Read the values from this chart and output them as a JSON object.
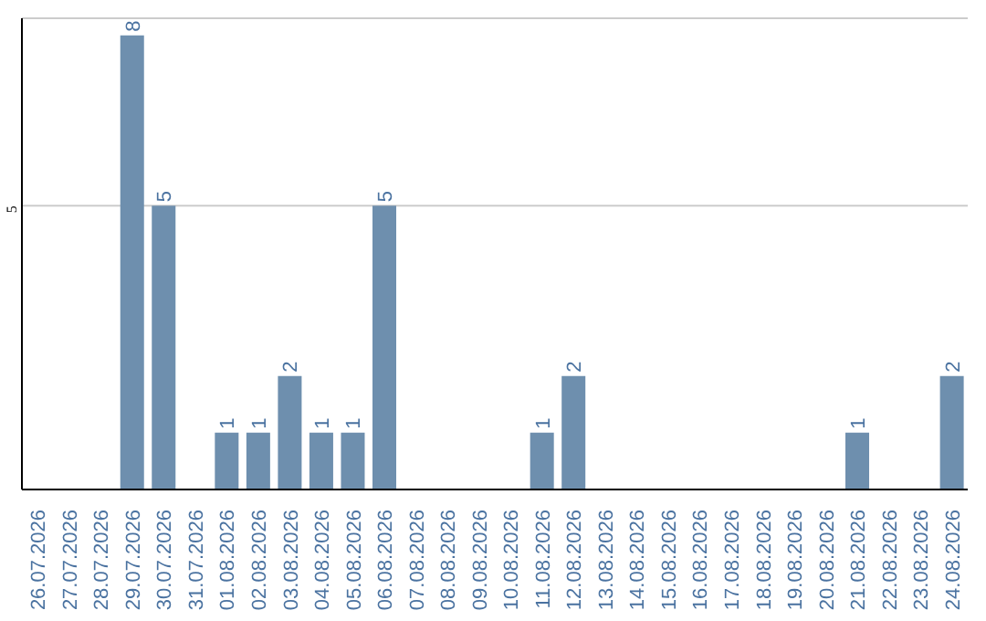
{
  "chart_data": {
    "type": "bar",
    "categories": [
      "26.07.2026",
      "27.07.2026",
      "28.07.2026",
      "29.07.2026",
      "30.07.2026",
      "31.07.2026",
      "01.08.2026",
      "02.08.2026",
      "03.08.2026",
      "04.08.2026",
      "05.08.2026",
      "06.08.2026",
      "07.08.2026",
      "08.08.2026",
      "09.08.2026",
      "10.08.2026",
      "11.08.2026",
      "12.08.2026",
      "13.08.2026",
      "14.08.2026",
      "15.08.2026",
      "16.08.2026",
      "17.08.2026",
      "18.08.2026",
      "19.08.2026",
      "20.08.2026",
      "21.08.2026",
      "22.08.2026",
      "23.08.2026",
      "24.08.2026"
    ],
    "values": [
      0,
      0,
      0,
      8,
      5,
      0,
      1,
      1,
      2,
      1,
      1,
      5,
      0,
      0,
      0,
      0,
      1,
      2,
      0,
      0,
      0,
      0,
      0,
      0,
      0,
      0,
      1,
      0,
      0,
      2
    ],
    "value_labels": [
      null,
      null,
      null,
      "8",
      "5",
      null,
      "1",
      "1",
      "2",
      "1",
      "1",
      "5",
      null,
      null,
      null,
      null,
      "1",
      "2",
      null,
      null,
      null,
      null,
      null,
      null,
      null,
      null,
      "1",
      null,
      null,
      "2"
    ],
    "color": "#6e8fae",
    "ylim": [
      0,
      8.3
    ],
    "yticks": [
      5
    ],
    "grid": "y"
  }
}
